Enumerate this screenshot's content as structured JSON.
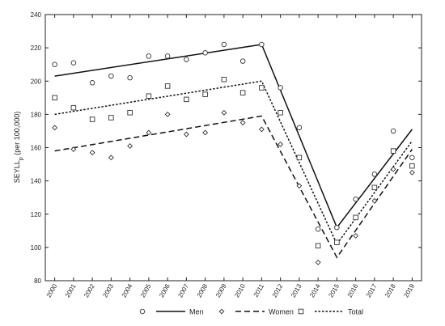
{
  "chart_data": {
    "type": "scatter",
    "title": "",
    "xlabel": "",
    "ylabel": "SEYLL",
    "ylabel_sub": "p",
    "ylabel_rest": " (per 100,000)",
    "x": [
      2000,
      2001,
      2002,
      2003,
      2004,
      2005,
      2006,
      2007,
      2008,
      2009,
      2010,
      2011,
      2012,
      2013,
      2014,
      2015,
      2016,
      2017,
      2018,
      2019
    ],
    "ylim": [
      80,
      240
    ],
    "yticks": [
      80,
      100,
      120,
      140,
      160,
      180,
      200,
      220,
      240
    ],
    "grid": false,
    "legend_position": "bottom",
    "series": [
      {
        "name": "Men",
        "marker": "circle",
        "line_style": "solid",
        "points": [
          210,
          211,
          199,
          203,
          202,
          215,
          215,
          213,
          217,
          222,
          212,
          222,
          196,
          172,
          111,
          112,
          129,
          144,
          170,
          154
        ],
        "trend": [
          [
            2000,
            203
          ],
          [
            2011,
            222
          ],
          [
            2015,
            112
          ],
          [
            2019,
            171
          ]
        ]
      },
      {
        "name": "Women",
        "marker": "diamond",
        "line_style": "dashed",
        "points": [
          172,
          159,
          157,
          154,
          161,
          169,
          180,
          168,
          169,
          181,
          175,
          171,
          162,
          137,
          91,
          103,
          107,
          128,
          147,
          145
        ],
        "trend": [
          [
            2000,
            158
          ],
          [
            2011,
            179
          ],
          [
            2015,
            94
          ],
          [
            2019,
            159
          ]
        ]
      },
      {
        "name": "Total",
        "marker": "square",
        "line_style": "dotted",
        "points": [
          190,
          184,
          177,
          178,
          181,
          191,
          197,
          189,
          192,
          201,
          193,
          196,
          181,
          154,
          101,
          103,
          118,
          136,
          158,
          149
        ],
        "trend": [
          [
            2000,
            180
          ],
          [
            2011,
            200
          ],
          [
            2015,
            102
          ],
          [
            2019,
            164
          ]
        ]
      }
    ]
  }
}
